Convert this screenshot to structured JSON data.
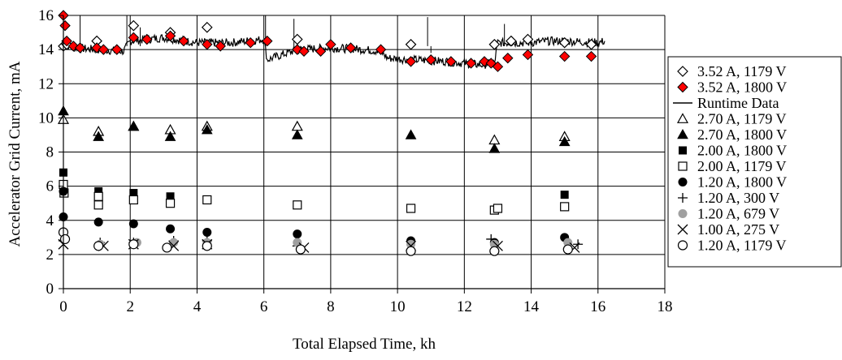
{
  "chart_data": {
    "type": "scatter",
    "xlabel": "Total Elapsed Time, kh",
    "ylabel": "Accelerator Grid Current, mA",
    "xlim": [
      0,
      18
    ],
    "ylim": [
      0,
      16
    ],
    "xticks": [
      0,
      2,
      4,
      6,
      8,
      10,
      12,
      14,
      16,
      18
    ],
    "yticks": [
      0,
      2,
      4,
      6,
      8,
      10,
      12,
      14,
      16
    ],
    "grid": true,
    "legend_position": "right",
    "colors": {
      "red": "#ff0000",
      "gray": "#a0a0a0",
      "black": "#000000"
    },
    "series": [
      {
        "name": "3.52 A, 1179 V",
        "marker": "diamond-open",
        "points": [
          [
            0.0,
            14.2
          ],
          [
            0.1,
            14.3
          ],
          [
            1.0,
            14.5
          ],
          [
            2.1,
            15.4
          ],
          [
            3.2,
            15.0
          ],
          [
            4.3,
            15.3
          ],
          [
            7.0,
            14.6
          ],
          [
            10.4,
            14.3
          ],
          [
            12.9,
            14.3
          ],
          [
            13.4,
            14.5
          ],
          [
            13.9,
            14.6
          ],
          [
            15.0,
            14.4
          ],
          [
            15.8,
            14.3
          ]
        ]
      },
      {
        "name": "3.52 A, 1800 V",
        "marker": "diamond-filled-red",
        "points": [
          [
            0.0,
            16.0
          ],
          [
            0.05,
            15.4
          ],
          [
            0.1,
            14.5
          ],
          [
            0.3,
            14.2
          ],
          [
            0.5,
            14.1
          ],
          [
            1.0,
            14.1
          ],
          [
            1.2,
            14.0
          ],
          [
            1.6,
            14.0
          ],
          [
            2.1,
            14.7
          ],
          [
            2.5,
            14.6
          ],
          [
            3.2,
            14.8
          ],
          [
            3.6,
            14.5
          ],
          [
            4.3,
            14.3
          ],
          [
            4.7,
            14.2
          ],
          [
            5.6,
            14.4
          ],
          [
            6.1,
            14.5
          ],
          [
            7.0,
            14.0
          ],
          [
            7.2,
            13.9
          ],
          [
            7.7,
            13.9
          ],
          [
            8.0,
            14.3
          ],
          [
            8.6,
            14.1
          ],
          [
            9.5,
            14.0
          ],
          [
            10.4,
            13.3
          ],
          [
            11.0,
            13.4
          ],
          [
            11.6,
            13.3
          ],
          [
            12.2,
            13.2
          ],
          [
            12.6,
            13.3
          ],
          [
            12.8,
            13.2
          ],
          [
            13.0,
            13.0
          ],
          [
            13.3,
            13.5
          ],
          [
            13.9,
            13.7
          ],
          [
            15.0,
            13.6
          ],
          [
            15.8,
            13.6
          ]
        ]
      },
      {
        "name": "Runtime Data",
        "marker": "line",
        "points": [
          [
            0.0,
            14.3
          ],
          [
            0.3,
            14.1
          ],
          [
            1.0,
            14.0
          ],
          [
            1.8,
            13.9
          ],
          [
            2.0,
            14.5
          ],
          [
            3.0,
            14.7
          ],
          [
            4.0,
            14.4
          ],
          [
            5.0,
            14.4
          ],
          [
            6.0,
            14.6
          ],
          [
            6.1,
            13.4
          ],
          [
            7.0,
            14.0
          ],
          [
            8.0,
            14.1
          ],
          [
            9.0,
            14.0
          ],
          [
            9.5,
            13.9
          ],
          [
            9.7,
            13.5
          ],
          [
            10.5,
            13.4
          ],
          [
            11.5,
            13.3
          ],
          [
            12.5,
            13.1
          ],
          [
            12.9,
            13.2
          ],
          [
            13.0,
            14.4
          ],
          [
            13.6,
            14.4
          ],
          [
            14.0,
            14.4
          ],
          [
            14.5,
            14.5
          ],
          [
            15.0,
            14.5
          ],
          [
            16.0,
            14.4
          ],
          [
            16.2,
            14.5
          ]
        ]
      },
      {
        "name": "2.70 A, 1179 V",
        "marker": "triangle-open",
        "points": [
          [
            0.0,
            9.9
          ],
          [
            1.05,
            9.2
          ],
          [
            2.1,
            9.5
          ],
          [
            3.2,
            9.3
          ],
          [
            4.3,
            9.5
          ],
          [
            7.0,
            9.5
          ],
          [
            12.9,
            8.7
          ],
          [
            15.0,
            8.9
          ]
        ]
      },
      {
        "name": "2.70 A, 1800 V",
        "marker": "triangle-filled",
        "points": [
          [
            0.0,
            10.4
          ],
          [
            1.05,
            8.9
          ],
          [
            2.1,
            9.5
          ],
          [
            3.2,
            8.9
          ],
          [
            4.3,
            9.3
          ],
          [
            7.0,
            9.0
          ],
          [
            10.4,
            9.0
          ],
          [
            12.9,
            8.2
          ],
          [
            15.0,
            8.6
          ]
        ]
      },
      {
        "name": "2.00 A, 1800 V",
        "marker": "square-filled",
        "points": [
          [
            0.0,
            6.8
          ],
          [
            1.05,
            5.7
          ],
          [
            2.1,
            5.6
          ],
          [
            3.2,
            5.4
          ],
          [
            15.0,
            5.5
          ]
        ]
      },
      {
        "name": "2.00 A, 1179 V",
        "marker": "square-open",
        "points": [
          [
            0.0,
            6.1
          ],
          [
            0.02,
            5.6
          ],
          [
            1.05,
            5.4
          ],
          [
            1.05,
            4.9
          ],
          [
            2.1,
            5.2
          ],
          [
            3.2,
            5.0
          ],
          [
            4.3,
            5.2
          ],
          [
            7.0,
            4.9
          ],
          [
            10.4,
            4.7
          ],
          [
            12.9,
            4.6
          ],
          [
            13.0,
            4.7
          ],
          [
            15.0,
            4.8
          ]
        ]
      },
      {
        "name": "1.20 A, 1800 V",
        "marker": "circle-filled",
        "points": [
          [
            0.0,
            5.7
          ],
          [
            0.0,
            4.2
          ],
          [
            1.05,
            3.9
          ],
          [
            2.1,
            3.8
          ],
          [
            3.2,
            3.5
          ],
          [
            4.3,
            3.3
          ],
          [
            7.0,
            3.2
          ],
          [
            10.4,
            2.8
          ],
          [
            12.9,
            2.7
          ],
          [
            15.0,
            3.0
          ]
        ]
      },
      {
        "name": "1.20 A, 300 V",
        "marker": "plus",
        "points": [
          [
            0.0,
            2.8
          ],
          [
            1.1,
            2.7
          ],
          [
            2.1,
            2.7
          ],
          [
            3.3,
            2.8
          ],
          [
            4.3,
            2.8
          ],
          [
            7.0,
            2.5
          ],
          [
            12.8,
            2.9
          ],
          [
            15.4,
            2.6
          ]
        ]
      },
      {
        "name": "1.20 A, 679 V",
        "marker": "circle-gray",
        "points": [
          [
            1.1,
            2.6
          ],
          [
            2.2,
            2.7
          ],
          [
            3.3,
            2.7
          ],
          [
            4.3,
            2.7
          ],
          [
            7.0,
            2.7
          ],
          [
            10.4,
            2.6
          ],
          [
            12.9,
            2.6
          ],
          [
            15.1,
            2.7
          ]
        ]
      },
      {
        "name": "1.00 A, 275 V",
        "marker": "cross",
        "points": [
          [
            0.0,
            2.6
          ],
          [
            1.2,
            2.5
          ],
          [
            2.1,
            2.6
          ],
          [
            3.3,
            2.5
          ],
          [
            4.3,
            2.6
          ],
          [
            7.2,
            2.4
          ],
          [
            10.4,
            2.5
          ],
          [
            13.0,
            2.5
          ],
          [
            15.3,
            2.4
          ]
        ]
      },
      {
        "name": "1.20 A, 1179 V",
        "marker": "circle-open",
        "points": [
          [
            0.0,
            3.3
          ],
          [
            0.05,
            2.9
          ],
          [
            1.05,
            2.5
          ],
          [
            2.1,
            2.6
          ],
          [
            3.1,
            2.4
          ],
          [
            4.3,
            2.5
          ],
          [
            7.1,
            2.3
          ],
          [
            10.4,
            2.2
          ],
          [
            12.9,
            2.2
          ],
          [
            15.1,
            2.3
          ]
        ]
      }
    ]
  }
}
